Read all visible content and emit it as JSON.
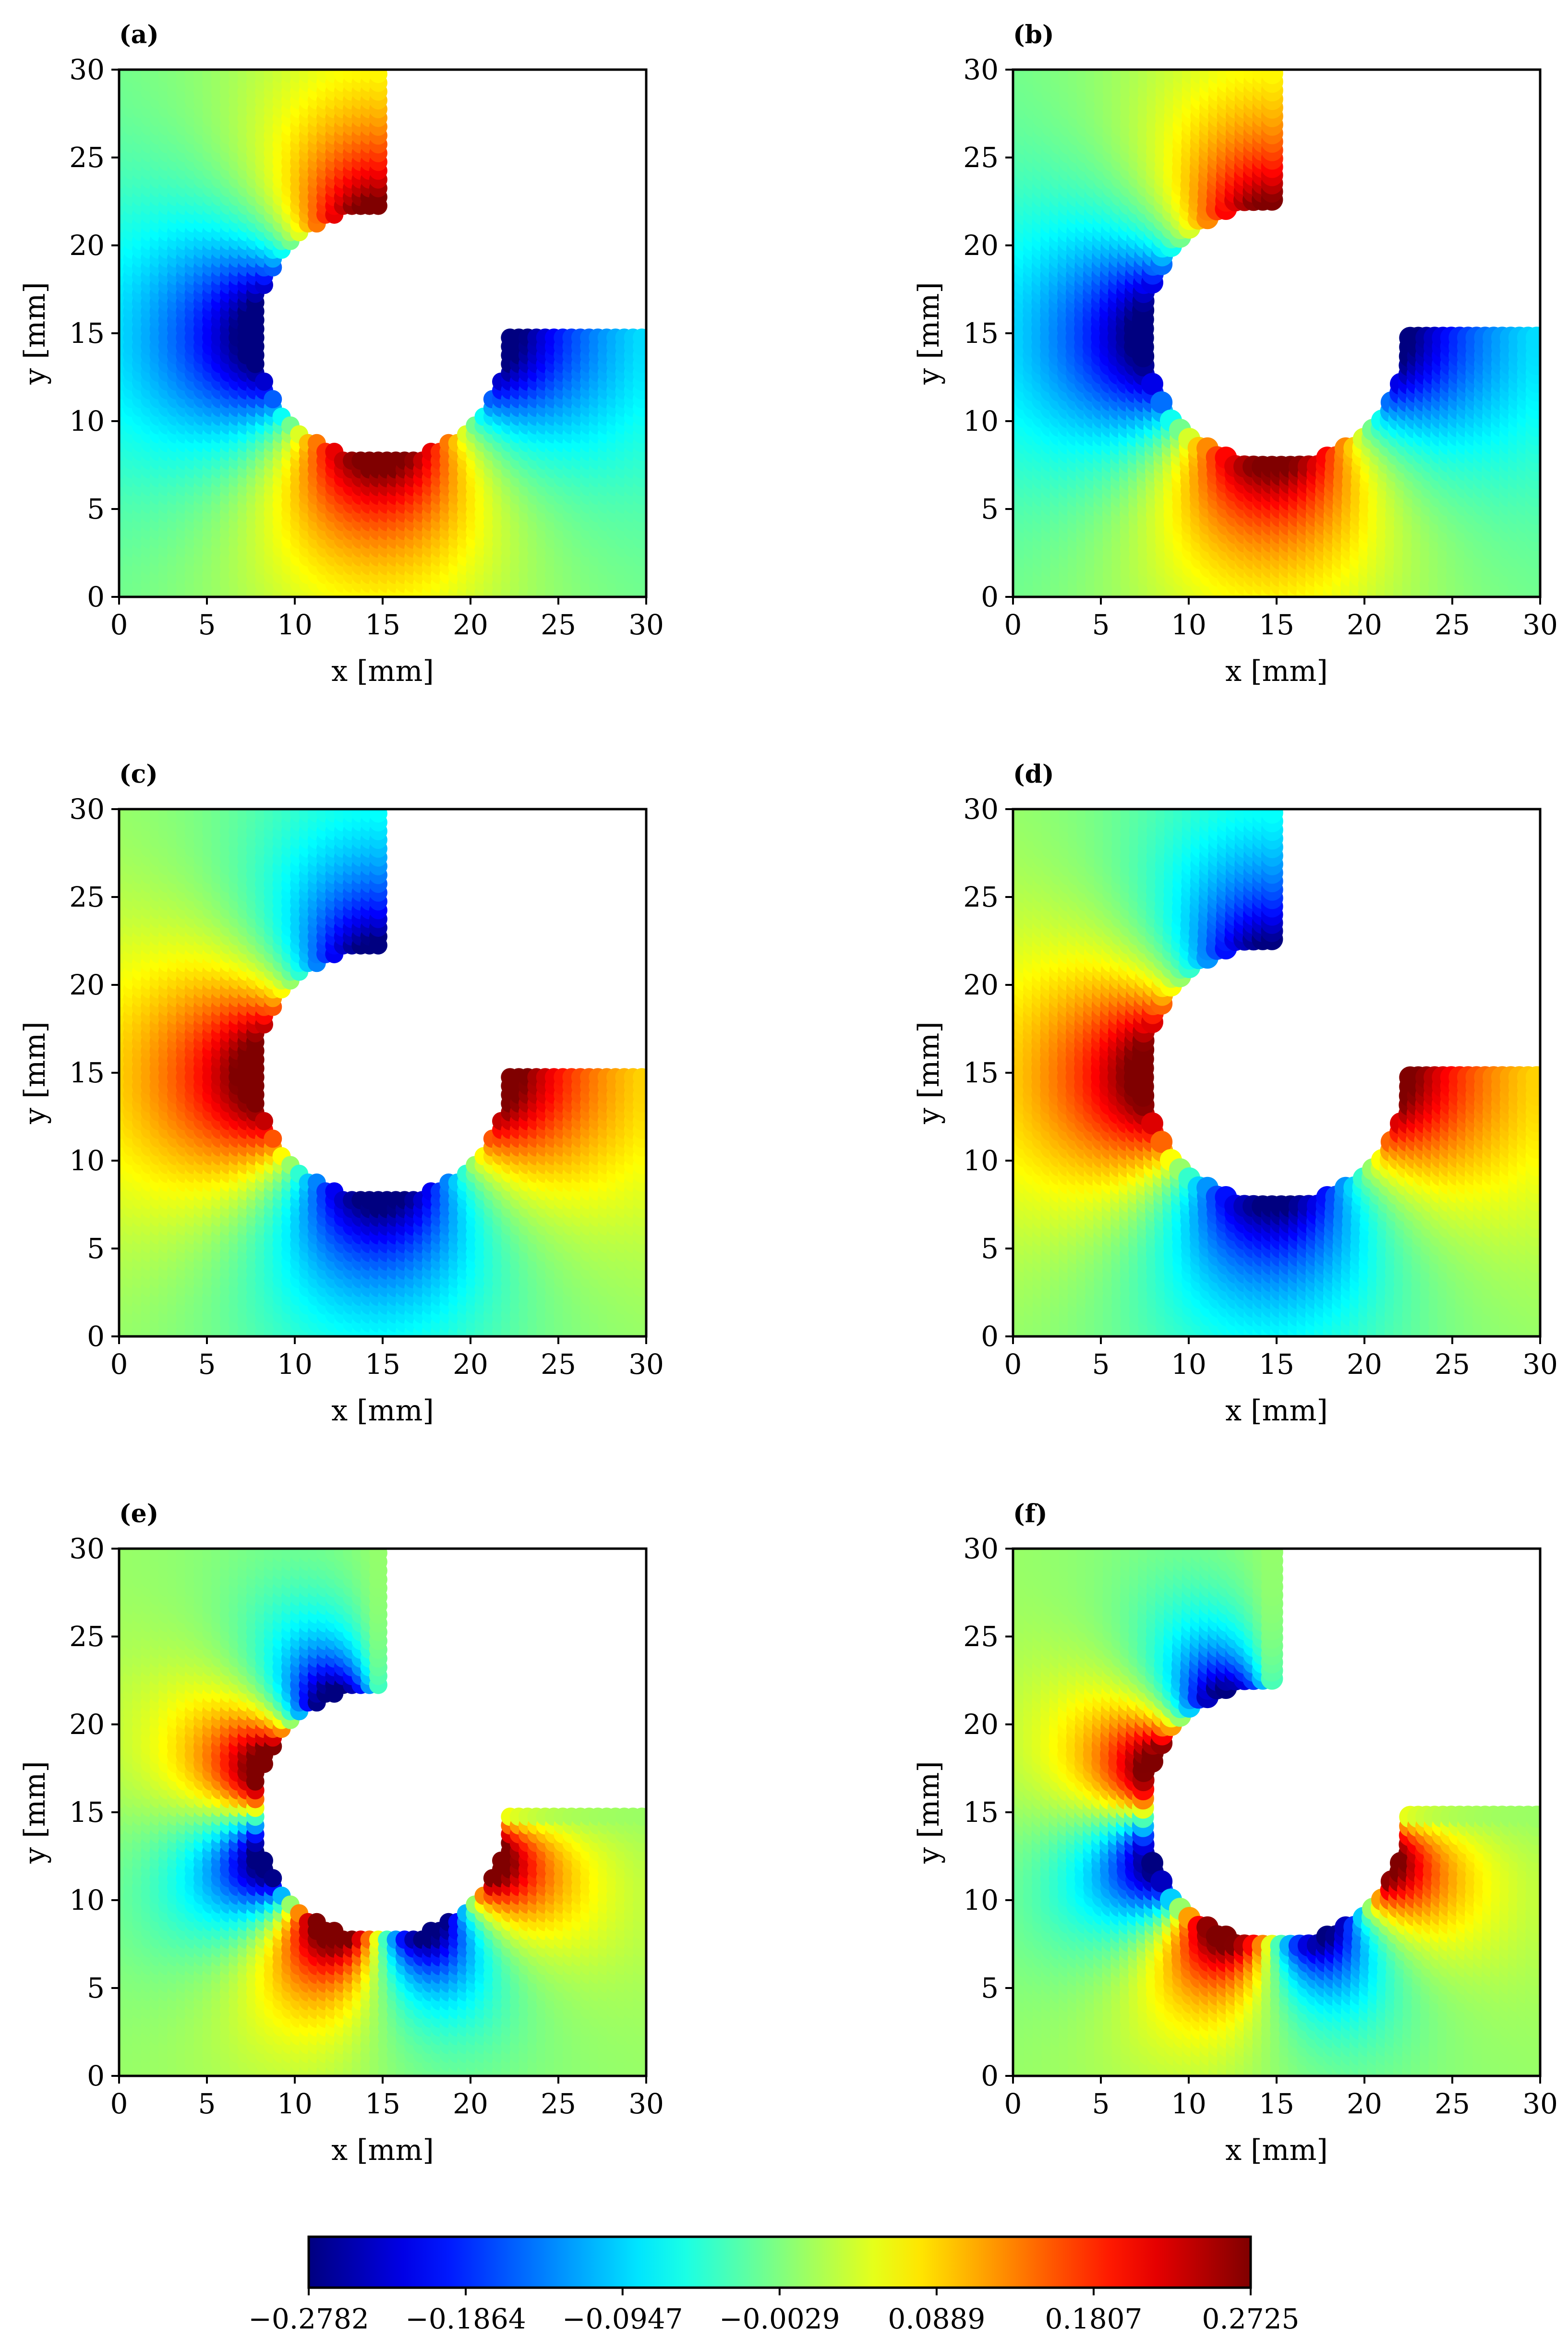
{
  "chart_data": [
    {
      "type": "scatter",
      "panel_label": "(a)",
      "xlabel": "x [mm]",
      "ylabel": "y [mm]",
      "xlim": [
        0,
        30
      ],
      "ylim": [
        0,
        30
      ],
      "xticks": [
        "0",
        "5",
        "10",
        "15",
        "20",
        "25",
        "30"
      ],
      "yticks": [
        "0",
        "5",
        "10",
        "15",
        "20",
        "25",
        "30"
      ],
      "grid": false,
      "deformed": false,
      "field": "mode1",
      "field_sign": 1
    },
    {
      "type": "scatter",
      "panel_label": "(b)",
      "xlabel": "x [mm]",
      "ylabel": "y [mm]",
      "xlim": [
        0,
        30
      ],
      "ylim": [
        0,
        30
      ],
      "xticks": [
        "0",
        "5",
        "10",
        "15",
        "20",
        "25",
        "30"
      ],
      "yticks": [
        "0",
        "5",
        "10",
        "15",
        "20",
        "25",
        "30"
      ],
      "grid": false,
      "deformed": true,
      "field": "mode1",
      "field_sign": 1
    },
    {
      "type": "scatter",
      "panel_label": "(c)",
      "xlabel": "x [mm]",
      "ylabel": "y [mm]",
      "xlim": [
        0,
        30
      ],
      "ylim": [
        0,
        30
      ],
      "xticks": [
        "0",
        "5",
        "10",
        "15",
        "20",
        "25",
        "30"
      ],
      "yticks": [
        "0",
        "5",
        "10",
        "15",
        "20",
        "25",
        "30"
      ],
      "grid": false,
      "deformed": false,
      "field": "mode1",
      "field_sign": -1
    },
    {
      "type": "scatter",
      "panel_label": "(d)",
      "xlabel": "x [mm]",
      "ylabel": "y [mm]",
      "xlim": [
        0,
        30
      ],
      "ylim": [
        0,
        30
      ],
      "xticks": [
        "0",
        "5",
        "10",
        "15",
        "20",
        "25",
        "30"
      ],
      "yticks": [
        "0",
        "5",
        "10",
        "15",
        "20",
        "25",
        "30"
      ],
      "grid": false,
      "deformed": true,
      "field": "mode1",
      "field_sign": -1
    },
    {
      "type": "scatter",
      "panel_label": "(e)",
      "xlabel": "x [mm]",
      "ylabel": "y [mm]",
      "xlim": [
        0,
        30
      ],
      "ylim": [
        0,
        30
      ],
      "xticks": [
        "0",
        "5",
        "10",
        "15",
        "20",
        "25",
        "30"
      ],
      "yticks": [
        "0",
        "5",
        "10",
        "15",
        "20",
        "25",
        "30"
      ],
      "grid": false,
      "deformed": false,
      "field": "mode2",
      "field_sign": 1
    },
    {
      "type": "scatter",
      "panel_label": "(f)",
      "xlabel": "x [mm]",
      "ylabel": "y [mm]",
      "xlim": [
        0,
        30
      ],
      "ylim": [
        0,
        30
      ],
      "xticks": [
        "0",
        "5",
        "10",
        "15",
        "20",
        "25",
        "30"
      ],
      "yticks": [
        "0",
        "5",
        "10",
        "15",
        "20",
        "25",
        "30"
      ],
      "grid": false,
      "deformed": true,
      "field": "mode2",
      "field_sign": 1
    }
  ],
  "colorbar": {
    "colormap": "jet",
    "range": [
      -0.2782,
      0.2725
    ],
    "ticks": [
      -0.2782,
      -0.1864,
      -0.0947,
      -0.0029,
      0.0889,
      0.1807,
      0.2725
    ],
    "tick_labels": [
      "−0.2782",
      "−0.1864",
      "−0.0947",
      "−0.0029",
      "0.0889",
      "0.1807",
      "0.2725"
    ],
    "orientation": "horizontal"
  },
  "geometry": {
    "domain_mm": [
      30,
      30
    ],
    "hole_center_mm": [
      15,
      15
    ],
    "hole_radius_mm": 7.2,
    "removed_top_right_mm": {
      "x_min": 15,
      "y_min": 15
    },
    "node_spacing_mm": 0.5
  }
}
